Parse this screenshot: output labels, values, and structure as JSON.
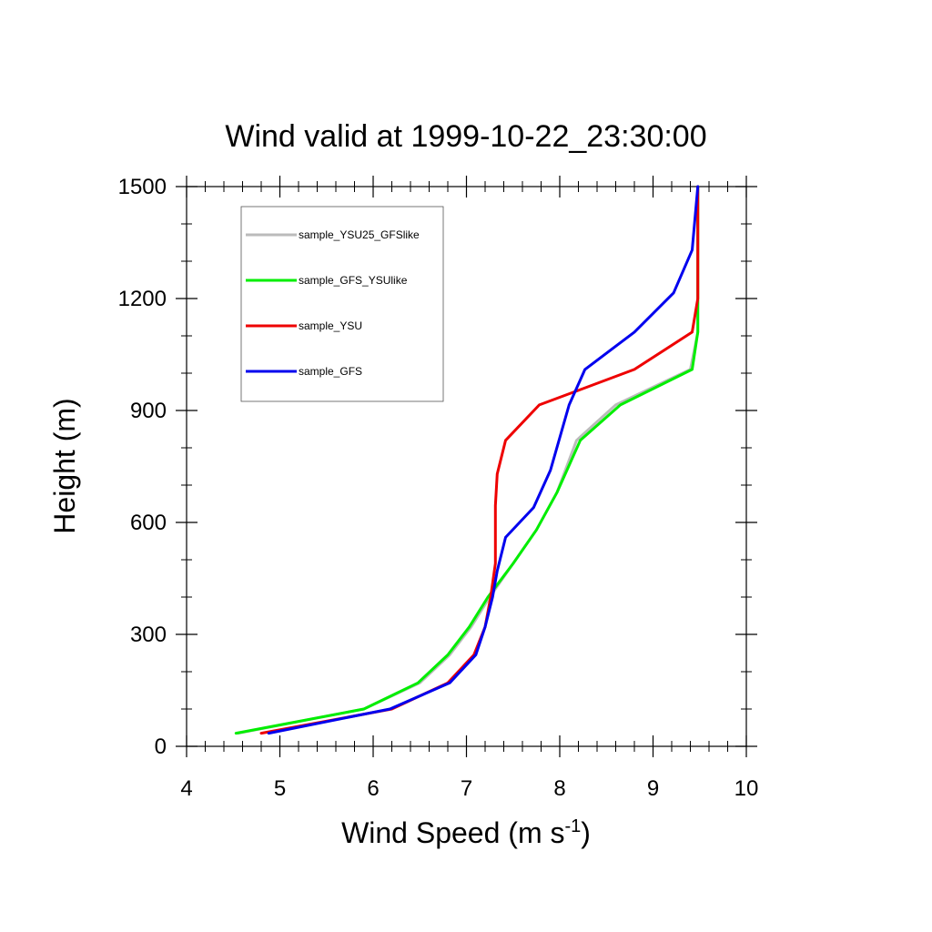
{
  "chart_data": {
    "type": "line",
    "title": "Wind valid at 1999-10-22_23:30:00",
    "xlabel_main": "Wind Speed (m s",
    "xlabel_sup": "-1",
    "xlabel_tail": ")",
    "ylabel": "Height (m)",
    "xlim": [
      4,
      10
    ],
    "ylim": [
      0,
      1500
    ],
    "xticks": [
      4,
      5,
      6,
      7,
      8,
      9,
      10
    ],
    "yticks": [
      0,
      300,
      600,
      900,
      1200,
      1500
    ],
    "xminor_step": 0.2,
    "yminor_step": 100,
    "grid": false,
    "legend_position": "top-left",
    "series": [
      {
        "name": "sample_YSU25_GFSlike",
        "color": "#bbbbbb",
        "points": [
          [
            4.55,
            35
          ],
          [
            5.9,
            100
          ],
          [
            6.5,
            170
          ],
          [
            6.82,
            245
          ],
          [
            7.05,
            320
          ],
          [
            7.25,
            400
          ],
          [
            7.5,
            490
          ],
          [
            7.75,
            580
          ],
          [
            7.97,
            680
          ],
          [
            8.18,
            820
          ],
          [
            8.6,
            915
          ],
          [
            9.4,
            1010
          ],
          [
            9.48,
            1110
          ],
          [
            9.48,
            1500
          ]
        ]
      },
      {
        "name": "sample_GFS_YSUlike",
        "color": "#00ee00",
        "points": [
          [
            4.53,
            35
          ],
          [
            5.9,
            100
          ],
          [
            6.48,
            170
          ],
          [
            6.8,
            245
          ],
          [
            7.03,
            320
          ],
          [
            7.23,
            400
          ],
          [
            7.5,
            490
          ],
          [
            7.75,
            580
          ],
          [
            7.97,
            680
          ],
          [
            8.22,
            820
          ],
          [
            8.65,
            915
          ],
          [
            9.42,
            1010
          ],
          [
            9.48,
            1110
          ],
          [
            9.48,
            1500
          ]
        ]
      },
      {
        "name": "sample_YSU",
        "color": "#ee0000",
        "points": [
          [
            4.8,
            35
          ],
          [
            6.2,
            100
          ],
          [
            6.8,
            170
          ],
          [
            7.08,
            245
          ],
          [
            7.2,
            320
          ],
          [
            7.26,
            400
          ],
          [
            7.31,
            490
          ],
          [
            7.31,
            645
          ],
          [
            7.33,
            730
          ],
          [
            7.42,
            820
          ],
          [
            7.78,
            915
          ],
          [
            8.8,
            1010
          ],
          [
            9.42,
            1110
          ],
          [
            9.48,
            1200
          ],
          [
            9.48,
            1500
          ]
        ]
      },
      {
        "name": "sample_GFS",
        "color": "#0000ee",
        "points": [
          [
            4.88,
            35
          ],
          [
            6.18,
            100
          ],
          [
            6.82,
            170
          ],
          [
            7.1,
            245
          ],
          [
            7.2,
            320
          ],
          [
            7.28,
            400
          ],
          [
            7.33,
            470
          ],
          [
            7.42,
            560
          ],
          [
            7.72,
            640
          ],
          [
            7.9,
            740
          ],
          [
            8.1,
            915
          ],
          [
            8.27,
            1010
          ],
          [
            8.8,
            1110
          ],
          [
            9.22,
            1215
          ],
          [
            9.42,
            1330
          ],
          [
            9.48,
            1500
          ]
        ]
      }
    ]
  }
}
